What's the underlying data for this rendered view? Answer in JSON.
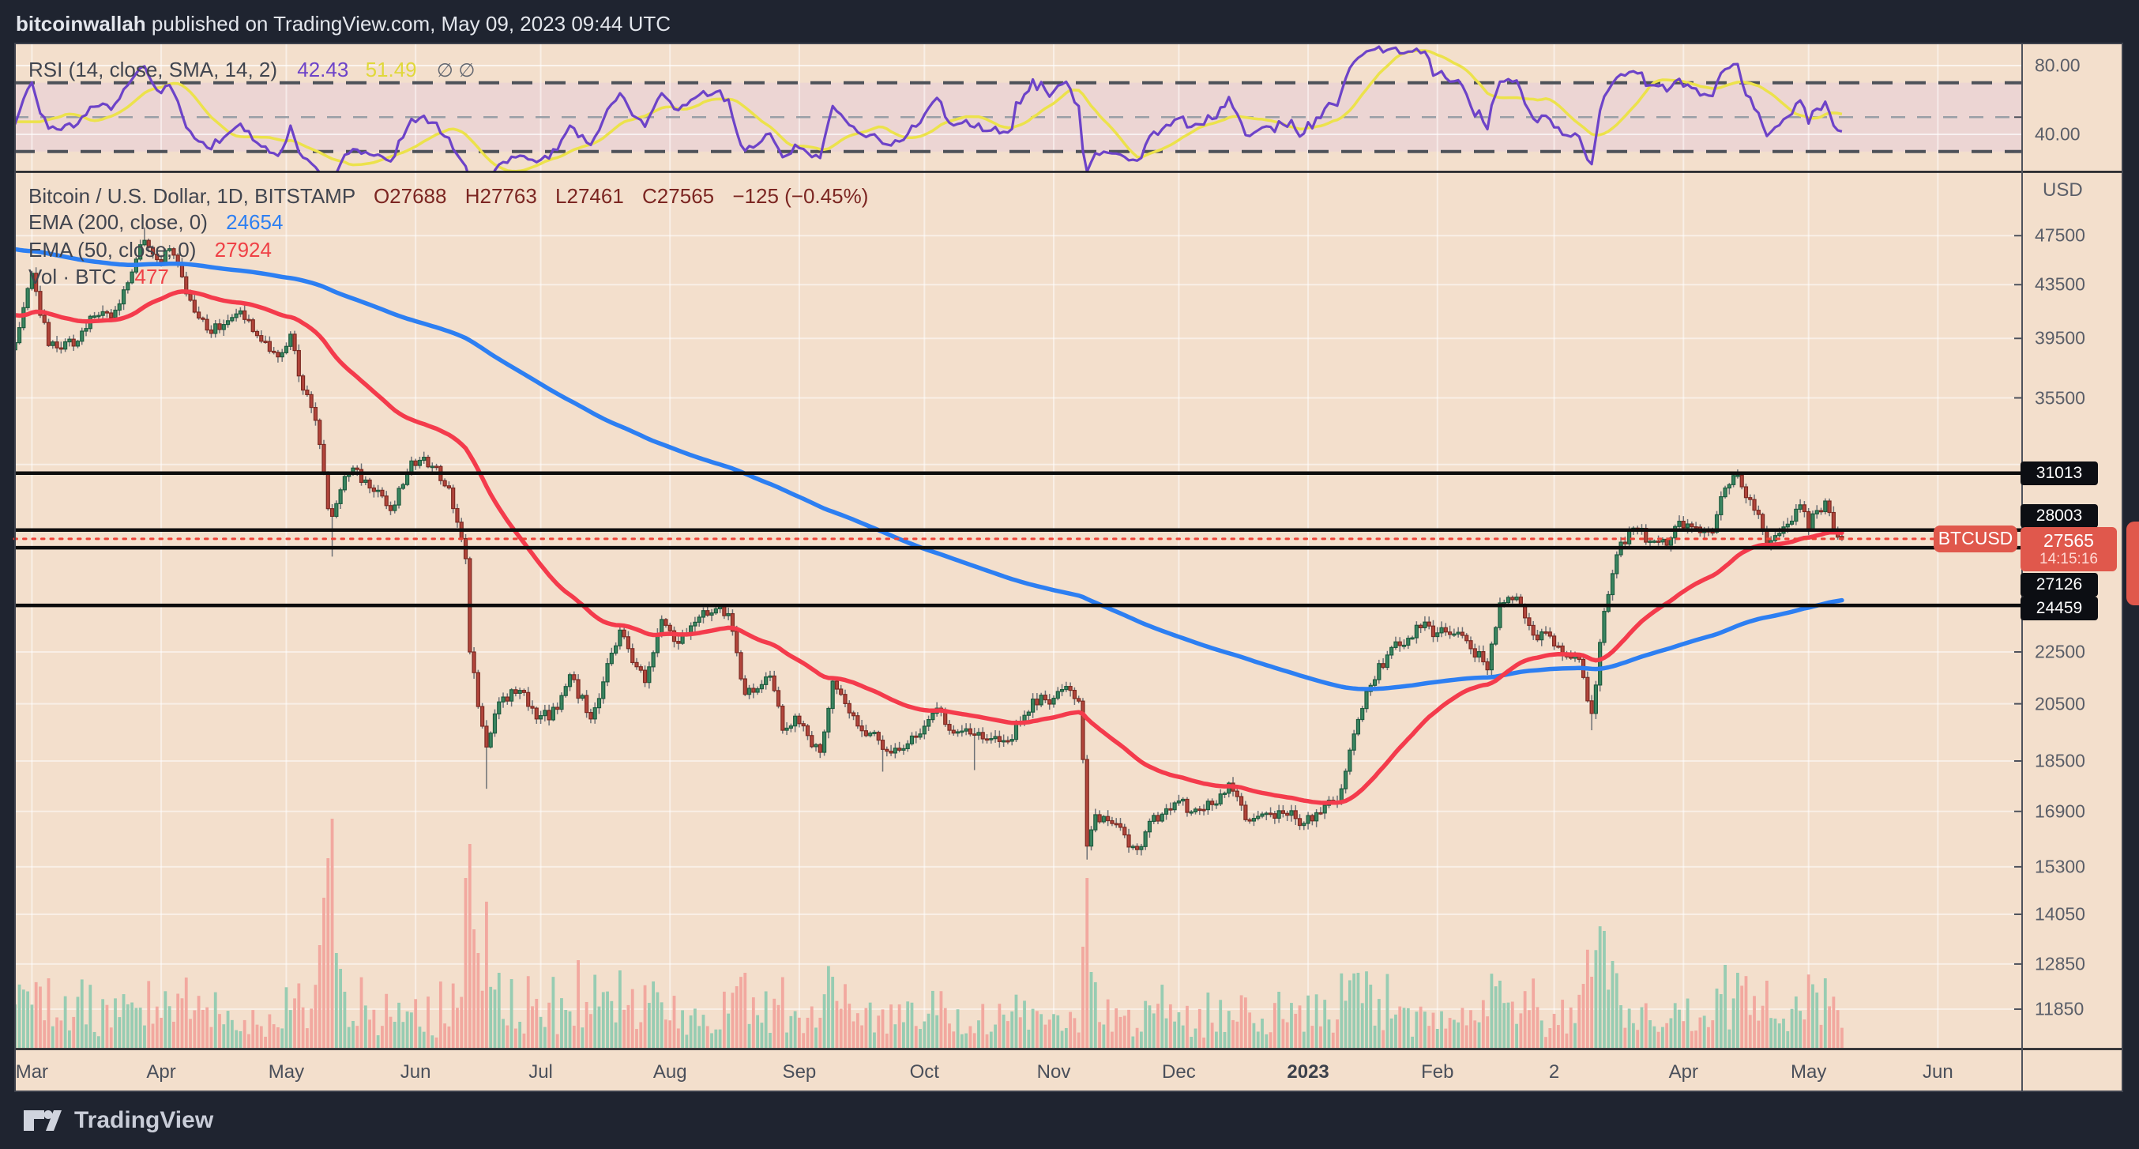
{
  "header": {
    "author": "bitcoinwallah",
    "published_text": " published on TradingView.com, May 09, 2023 09:44 UTC"
  },
  "rsi_panel": {
    "legend": "RSI (14, close, SMA, 14, 2)",
    "rsi_value": "42.43",
    "sma_value": "51.49",
    "hidden_values": "∅ ∅",
    "axis": [
      {
        "label": "80.00",
        "value": 80
      },
      {
        "label": "40.00",
        "value": 40
      }
    ]
  },
  "main_panel": {
    "title": "Bitcoin / U.S. Dollar, 1D, BITSTAMP",
    "open": "O27688",
    "high": "H27763",
    "low": "L27461",
    "close": "C27565",
    "change": "−125 (−0.45%)",
    "ema200_label": "EMA (200, close, 0)",
    "ema200_value": "24654",
    "ema50_label": "EMA (50, close, 0)",
    "ema50_value": "27924",
    "vol_label": "Vol · BTC",
    "vol_value": "477"
  },
  "price_axis": {
    "currency": "USD"
  },
  "footer": {
    "brand": "TradingView"
  },
  "colors": {
    "page_bg": "#1f2430",
    "panel_bg": "#f3dfcc",
    "rsi_band": "#ecd5d3",
    "up_candle": "#3a8560",
    "up_border": "#1d5b3e",
    "down_candle": "#b2453b",
    "down_border": "#7c2a22",
    "wick": "#6e7176",
    "volume_up": "#97ccb2",
    "volume_down": "#f2a89f",
    "ema50": "#f43b4c",
    "ema200": "#2d7ff2",
    "rsi_line": "#6d43c8",
    "rsi_sma": "#ece24b",
    "level_line": "#0d0d0d",
    "dotted_line": "#ef4136",
    "badge_black": "#0c0e13",
    "badge_red": "#e0584c"
  },
  "chart_data": {
    "type": "candlestick",
    "symbol": "BTCUSD",
    "exchange": "BITSTAMP",
    "timeframe": "1D",
    "price_scale": "log",
    "last_ohlc": {
      "open": 27688,
      "high": 27763,
      "low": 27461,
      "close": 27565
    },
    "change": -125,
    "change_pct": -0.45,
    "countdown": "14:15:16",
    "current_price": 27565,
    "indicators": {
      "ema200": 24654,
      "ema50": 27924,
      "rsi": 42.43,
      "rsi_sma": 51.49,
      "volume_btc": 477
    },
    "key_levels": [
      31013,
      28003,
      27126,
      24459
    ],
    "price_ticks": [
      47500,
      43500,
      39500,
      35500,
      22500,
      20500,
      18500,
      16900,
      15300,
      14050,
      12850,
      11850
    ],
    "grid_extra_prices": [
      31500
    ],
    "rsi_axis": {
      "solid": [
        80,
        40
      ],
      "dashed": [
        70,
        50,
        30
      ]
    },
    "visible_price_range": [
      11850,
      48200
    ],
    "start_date": "2022-02-24",
    "days_total": 440,
    "time_labels": [
      {
        "label": "Mar",
        "day": 5
      },
      {
        "label": "Apr",
        "day": 36
      },
      {
        "label": "May",
        "day": 66
      },
      {
        "label": "Jun",
        "day": 97
      },
      {
        "label": "Jul",
        "day": 127
      },
      {
        "label": "Aug",
        "day": 158
      },
      {
        "label": "Sep",
        "day": 189
      },
      {
        "label": "Oct",
        "day": 219
      },
      {
        "label": "Nov",
        "day": 250
      },
      {
        "label": "Dec",
        "day": 280
      },
      {
        "label": "2023",
        "day": 311,
        "bold": true
      },
      {
        "label": "Feb",
        "day": 342
      },
      {
        "label": "2",
        "day": 370
      },
      {
        "label": "Apr",
        "day": 401
      },
      {
        "label": "May",
        "day": 431
      },
      {
        "label": "Jun",
        "day": 462
      }
    ],
    "ema_seeds": {
      "ema50": 42600,
      "ema200": 47800
    },
    "anchors": [
      [
        -20,
        40800
      ],
      [
        -15,
        43800
      ],
      [
        -12,
        42500
      ],
      [
        -8,
        40000
      ],
      [
        -4,
        38400
      ],
      [
        -1,
        37300
      ],
      [
        0,
        38700
      ],
      [
        1,
        39200
      ],
      [
        4,
        43200
      ],
      [
        5,
        44400
      ],
      [
        9,
        39000
      ],
      [
        12,
        38750
      ],
      [
        16,
        39300
      ],
      [
        19,
        41100
      ],
      [
        24,
        41000
      ],
      [
        29,
        44500
      ],
      [
        32,
        47100
      ],
      [
        35,
        45500
      ],
      [
        38,
        46400
      ],
      [
        43,
        42300
      ],
      [
        47,
        40100
      ],
      [
        51,
        40500
      ],
      [
        55,
        41500
      ],
      [
        59,
        39700
      ],
      [
        62,
        38600
      ],
      [
        65,
        38500
      ],
      [
        67,
        39800
      ],
      [
        70,
        36000
      ],
      [
        73,
        34100
      ],
      [
        75,
        31000
      ],
      [
        76,
        29100
      ],
      [
        77,
        28700
      ],
      [
        79,
        30100
      ],
      [
        82,
        31300
      ],
      [
        86,
        30200
      ],
      [
        91,
        29000
      ],
      [
        96,
        31700
      ],
      [
        101,
        31400
      ],
      [
        105,
        30200
      ],
      [
        107,
        28400
      ],
      [
        109,
        26600
      ],
      [
        110,
        22500
      ],
      [
        112,
        20400
      ],
      [
        114,
        18970
      ],
      [
        117,
        20570
      ],
      [
        122,
        21000
      ],
      [
        126,
        19950
      ],
      [
        131,
        20300
      ],
      [
        134,
        21600
      ],
      [
        139,
        19950
      ],
      [
        144,
        22450
      ],
      [
        146,
        23400
      ],
      [
        152,
        21300
      ],
      [
        156,
        23850
      ],
      [
        160,
        22850
      ],
      [
        165,
        23950
      ],
      [
        170,
        24400
      ],
      [
        172,
        24100
      ],
      [
        176,
        20850
      ],
      [
        182,
        21550
      ],
      [
        185,
        19550
      ],
      [
        188,
        20050
      ],
      [
        194,
        18790
      ],
      [
        197,
        21350
      ],
      [
        201,
        20170
      ],
      [
        203,
        19700
      ],
      [
        206,
        19450
      ],
      [
        209,
        18890
      ],
      [
        215,
        19080
      ],
      [
        218,
        19420
      ],
      [
        222,
        20340
      ],
      [
        226,
        19450
      ],
      [
        231,
        19380
      ],
      [
        236,
        19330
      ],
      [
        239,
        19170
      ],
      [
        243,
        20080
      ],
      [
        247,
        20820
      ],
      [
        249,
        20490
      ],
      [
        253,
        21150
      ],
      [
        256,
        20600
      ],
      [
        257,
        18550
      ],
      [
        258,
        15880
      ],
      [
        260,
        16800
      ],
      [
        263,
        16620
      ],
      [
        270,
        15780
      ],
      [
        273,
        16600
      ],
      [
        279,
        17160
      ],
      [
        284,
        16970
      ],
      [
        289,
        17130
      ],
      [
        292,
        17780
      ],
      [
        296,
        16650
      ],
      [
        300,
        16820
      ],
      [
        305,
        16840
      ],
      [
        310,
        16540
      ],
      [
        314,
        16850
      ],
      [
        318,
        17190
      ],
      [
        323,
        19930
      ],
      [
        326,
        21190
      ],
      [
        331,
        22680
      ],
      [
        335,
        23060
      ],
      [
        339,
        23740
      ],
      [
        341,
        23130
      ],
      [
        343,
        23500
      ],
      [
        349,
        22960
      ],
      [
        354,
        21790
      ],
      [
        357,
        24570
      ],
      [
        361,
        24830
      ],
      [
        365,
        23190
      ],
      [
        369,
        23150
      ],
      [
        372,
        22350
      ],
      [
        376,
        22200
      ],
      [
        379,
        20150
      ],
      [
        382,
        24200
      ],
      [
        386,
        27400
      ],
      [
        389,
        28100
      ],
      [
        393,
        27450
      ],
      [
        397,
        27250
      ],
      [
        400,
        28450
      ],
      [
        404,
        28150
      ],
      [
        408,
        27900
      ],
      [
        411,
        30200
      ],
      [
        414,
        30900
      ],
      [
        419,
        28800
      ],
      [
        421,
        27250
      ],
      [
        426,
        28300
      ],
      [
        429,
        29300
      ],
      [
        431,
        28050
      ],
      [
        433,
        29000
      ],
      [
        435,
        29500
      ],
      [
        436,
        28900
      ],
      [
        438,
        27650
      ],
      [
        439,
        27565
      ]
    ],
    "wick_events": {
      "0": {
        "low": 34300
      },
      "32": {
        "high": 48200
      },
      "77": {
        "low": 26700
      },
      "114": {
        "low": 17600
      },
      "209": {
        "low": 18150
      },
      "231": {
        "low": 18200
      },
      "258": {
        "low": 15500
      },
      "379": {
        "low": 19550
      },
      "414": {
        "high": 31050
      }
    },
    "volume_spikes": {
      "74": 130,
      "75": 190,
      "76": 240,
      "77": 290,
      "78": 120,
      "79": 100,
      "109": 215,
      "110": 258,
      "111": 150,
      "112": 120,
      "114": 185,
      "117": 95,
      "146": 98,
      "176": 95,
      "197": 90,
      "257": 128,
      "258": 215,
      "259": 96,
      "323": 95,
      "326": 80,
      "357": 85,
      "379": 90,
      "382": 148,
      "384": 110,
      "411": 105,
      "414": 95,
      "421": 85,
      "433": 70,
      "435": 88
    }
  }
}
